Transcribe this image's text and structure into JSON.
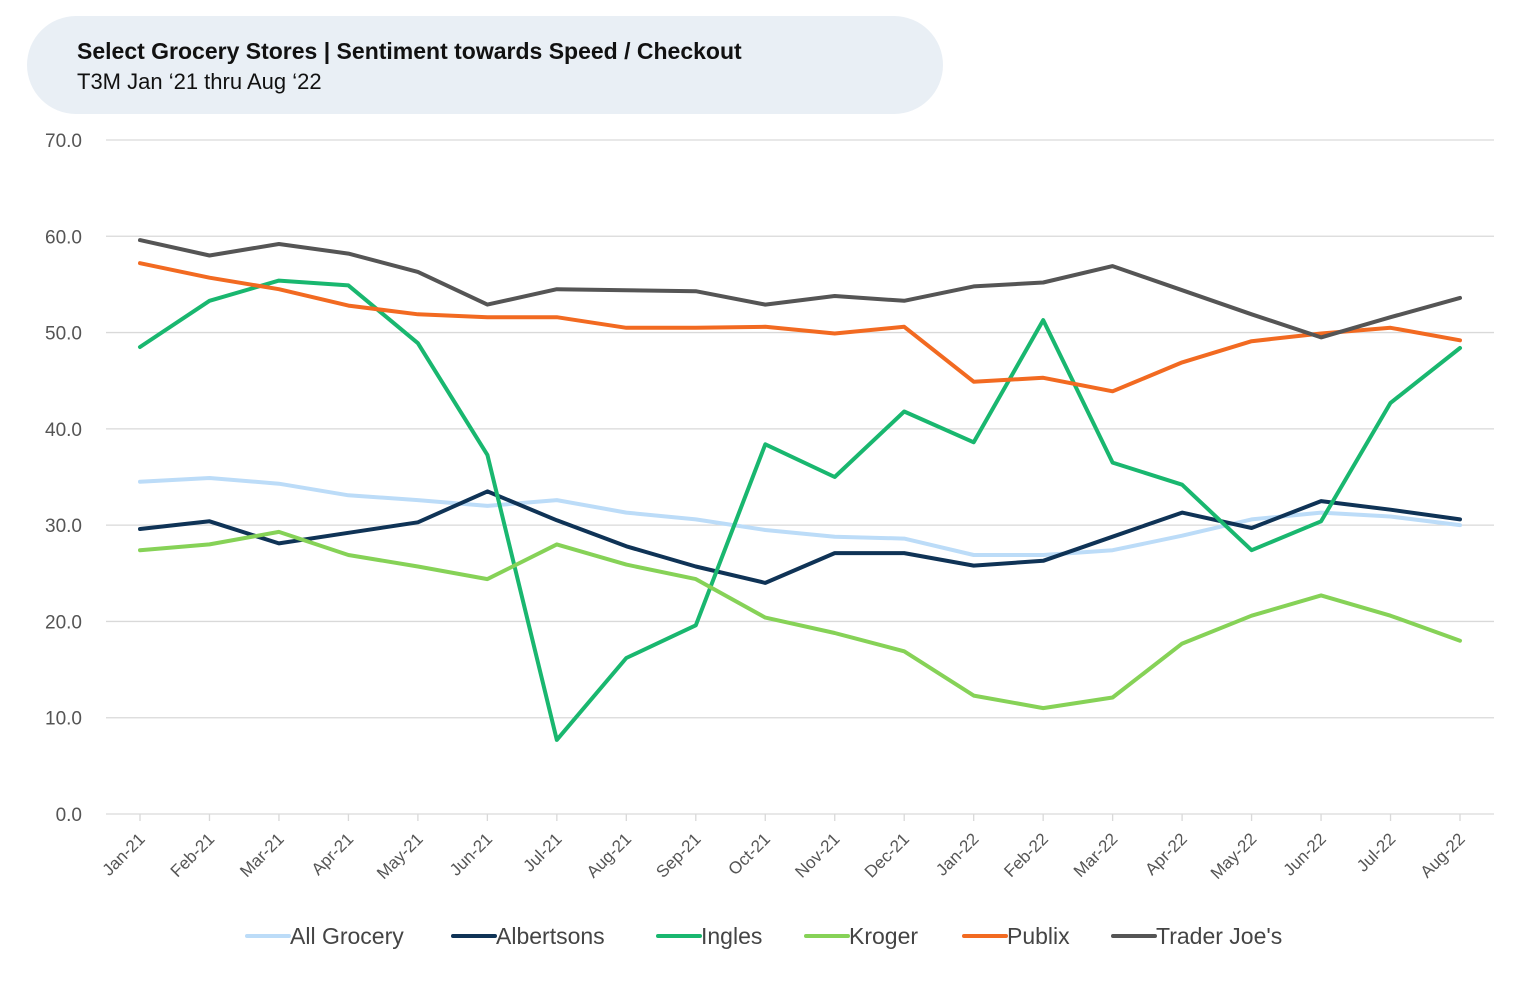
{
  "chart_data": {
    "type": "line",
    "title": "Select Grocery Stores | Sentiment towards Speed / Checkout",
    "subtitle": "T3M Jan ‘21 thru Aug ‘22",
    "xlabel": "",
    "ylabel": "",
    "ylim": [
      0,
      70
    ],
    "yticks": [
      "0.0",
      "10.0",
      "20.0",
      "30.0",
      "40.0",
      "50.0",
      "60.0",
      "70.0"
    ],
    "grid": "horizontal",
    "legend_position": "bottom",
    "categories": [
      "Jan-21",
      "Feb-21",
      "Mar-21",
      "Apr-21",
      "May-21",
      "Jun-21",
      "Jul-21",
      "Aug-21",
      "Sep-21",
      "Oct-21",
      "Nov-21",
      "Dec-21",
      "Jan-22",
      "Feb-22",
      "Mar-22",
      "Apr-22",
      "May-22",
      "Jun-22",
      "Jul-22",
      "Aug-22"
    ],
    "series": [
      {
        "name": "All Grocery",
        "color": "#bcdcf8",
        "values": [
          34.5,
          34.9,
          34.3,
          33.1,
          32.6,
          32.0,
          32.6,
          31.3,
          30.6,
          29.5,
          28.8,
          28.6,
          26.9,
          26.9,
          27.4,
          28.9,
          30.6,
          31.3,
          30.9,
          30.0
        ]
      },
      {
        "name": "Albertsons",
        "color": "#0f3356",
        "values": [
          29.6,
          30.4,
          28.1,
          29.2,
          30.3,
          33.5,
          30.5,
          27.8,
          25.7,
          24.0,
          27.1,
          27.1,
          25.8,
          26.3,
          28.8,
          31.3,
          29.7,
          32.5,
          31.6,
          30.6
        ]
      },
      {
        "name": "Ingles",
        "color": "#19b76f",
        "values": [
          48.5,
          53.3,
          55.4,
          54.9,
          48.9,
          37.3,
          7.7,
          16.2,
          19.6,
          38.4,
          35.0,
          41.8,
          38.6,
          51.3,
          36.5,
          34.2,
          27.4,
          30.4,
          42.7,
          48.4
        ]
      },
      {
        "name": "Kroger",
        "color": "#86d257",
        "values": [
          27.4,
          28.0,
          29.3,
          26.9,
          25.7,
          24.4,
          28.0,
          25.9,
          24.4,
          20.4,
          18.8,
          16.9,
          12.3,
          11.0,
          12.1,
          17.7,
          20.6,
          22.7,
          20.6,
          18.0
        ]
      },
      {
        "name": "Publix",
        "color": "#f26a21",
        "values": [
          57.2,
          55.7,
          54.5,
          52.8,
          51.9,
          51.6,
          51.6,
          50.5,
          50.5,
          50.6,
          49.9,
          50.6,
          44.9,
          45.3,
          43.9,
          46.9,
          49.1,
          49.9,
          50.5,
          49.2
        ]
      },
      {
        "name": "Trader Joe's",
        "color": "#555555",
        "values": [
          59.6,
          58.0,
          59.2,
          58.2,
          56.3,
          52.9,
          54.5,
          54.4,
          54.3,
          52.9,
          53.8,
          53.3,
          54.8,
          55.2,
          56.9,
          54.4,
          51.9,
          49.5,
          51.6,
          53.6
        ]
      }
    ]
  }
}
